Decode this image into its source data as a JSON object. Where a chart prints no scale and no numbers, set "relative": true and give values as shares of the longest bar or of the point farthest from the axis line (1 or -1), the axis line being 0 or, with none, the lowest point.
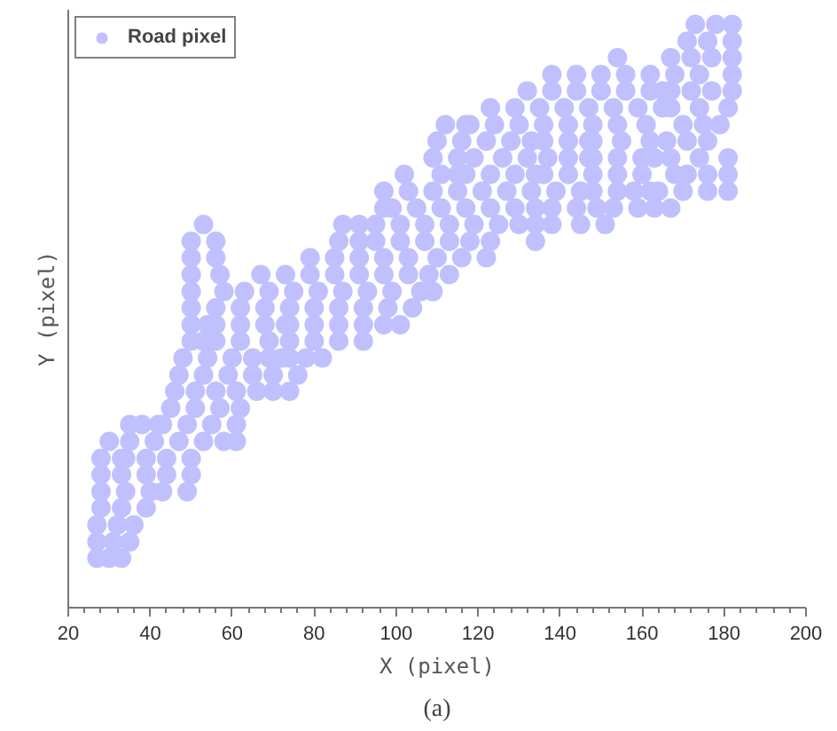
{
  "chart_data": {
    "type": "scatter",
    "relative": true,
    "xlabel": "X (pixel)",
    "ylabel": "Y (pixel)",
    "annotations": [
      "(a)"
    ],
    "xlim": [
      20,
      200
    ],
    "xticks": [
      20,
      40,
      60,
      80,
      100,
      120,
      140,
      160,
      180,
      200
    ],
    "legend": "top left",
    "marker": "circle",
    "series": [
      {
        "name": "Road pixel",
        "color": "#c0c0ff",
        "x": [
          173,
          178,
          182,
          171,
          176,
          182,
          154,
          167,
          172,
          177,
          182,
          138,
          144,
          150,
          156,
          162,
          168,
          174,
          182,
          132,
          138,
          144,
          150,
          156,
          162,
          165,
          167,
          172,
          177,
          182,
          123,
          129,
          135,
          141,
          147,
          153,
          159,
          165,
          167,
          174,
          181,
          112,
          117,
          118,
          124,
          130,
          136,
          142,
          148,
          154,
          161,
          170,
          175,
          179,
          110,
          116,
          122,
          128,
          133,
          136,
          142,
          147,
          148,
          155,
          162,
          166,
          171,
          176,
          109,
          115,
          119,
          126,
          132,
          137,
          142,
          147,
          148,
          154,
          160,
          163,
          167,
          174,
          181,
          102,
          111,
          115,
          117,
          123,
          129,
          134,
          136,
          142,
          148,
          154,
          160,
          168,
          171,
          176,
          181,
          97,
          103,
          109,
          115,
          121,
          127,
          133,
          139,
          145,
          148,
          154,
          158,
          162,
          164,
          170,
          176,
          181,
          97,
          99,
          105,
          111,
          117,
          123,
          129,
          134,
          138,
          144,
          149,
          153,
          159,
          163,
          167,
          53,
          87,
          91,
          95,
          101,
          107,
          113,
          119,
          125,
          130,
          134,
          138,
          145,
          151,
          50,
          56,
          86,
          91,
          95,
          101,
          107,
          113,
          118,
          123,
          134,
          50,
          56,
          79,
          85,
          91,
          97,
          103,
          110,
          116,
          122,
          50,
          57,
          67,
          73,
          79,
          85,
          91,
          97,
          103,
          108,
          113,
          50,
          58,
          63,
          69,
          75,
          81,
          87,
          93,
          99,
          106,
          109,
          50,
          56,
          62,
          68,
          74,
          80,
          86,
          92,
          98,
          104,
          50,
          54,
          56,
          62,
          68,
          73,
          74,
          80,
          86,
          92,
          97,
          101,
          50,
          53,
          56,
          62,
          69,
          74,
          80,
          86,
          92,
          48,
          54,
          60,
          65,
          69,
          72,
          74,
          78,
          82,
          47,
          53,
          59,
          65,
          70,
          76,
          46,
          51,
          56,
          61,
          66,
          70,
          74,
          45,
          51,
          57,
          62,
          35,
          38,
          42,
          43,
          49,
          55,
          61,
          30,
          35,
          41,
          47,
          53,
          58,
          61,
          28,
          33,
          34,
          39,
          44,
          50,
          28,
          33,
          39,
          44,
          50,
          28,
          34,
          40,
          43,
          49,
          28,
          33,
          39,
          27,
          32,
          36,
          27,
          31,
          35,
          27,
          30,
          33
        ],
        "values": [
          1.0,
          1.0,
          1.0,
          0.971,
          0.971,
          0.971,
          0.943,
          0.943,
          0.943,
          0.943,
          0.943,
          0.914,
          0.914,
          0.914,
          0.914,
          0.914,
          0.914,
          0.914,
          0.914,
          0.886,
          0.886,
          0.886,
          0.886,
          0.886,
          0.886,
          0.886,
          0.886,
          0.886,
          0.886,
          0.886,
          0.857,
          0.857,
          0.857,
          0.857,
          0.857,
          0.857,
          0.857,
          0.857,
          0.857,
          0.857,
          0.857,
          0.828,
          0.828,
          0.828,
          0.828,
          0.828,
          0.828,
          0.828,
          0.828,
          0.828,
          0.828,
          0.828,
          0.828,
          0.828,
          0.8,
          0.8,
          0.8,
          0.8,
          0.8,
          0.8,
          0.8,
          0.8,
          0.8,
          0.8,
          0.8,
          0.8,
          0.8,
          0.8,
          0.771,
          0.771,
          0.771,
          0.771,
          0.771,
          0.771,
          0.771,
          0.771,
          0.771,
          0.771,
          0.771,
          0.771,
          0.771,
          0.771,
          0.771,
          0.743,
          0.743,
          0.743,
          0.743,
          0.743,
          0.743,
          0.743,
          0.743,
          0.743,
          0.743,
          0.743,
          0.743,
          0.743,
          0.743,
          0.743,
          0.743,
          0.714,
          0.714,
          0.714,
          0.714,
          0.714,
          0.714,
          0.714,
          0.714,
          0.714,
          0.714,
          0.714,
          0.714,
          0.714,
          0.714,
          0.714,
          0.714,
          0.714,
          0.685,
          0.685,
          0.685,
          0.685,
          0.685,
          0.685,
          0.685,
          0.685,
          0.685,
          0.685,
          0.685,
          0.685,
          0.685,
          0.685,
          0.685,
          0.657,
          0.657,
          0.657,
          0.657,
          0.657,
          0.657,
          0.657,
          0.657,
          0.657,
          0.657,
          0.657,
          0.657,
          0.657,
          0.657,
          0.628,
          0.628,
          0.628,
          0.628,
          0.628,
          0.628,
          0.628,
          0.628,
          0.628,
          0.628,
          0.628,
          0.6,
          0.6,
          0.6,
          0.6,
          0.6,
          0.6,
          0.6,
          0.6,
          0.6,
          0.6,
          0.571,
          0.571,
          0.571,
          0.571,
          0.571,
          0.571,
          0.571,
          0.571,
          0.571,
          0.571,
          0.571,
          0.542,
          0.542,
          0.542,
          0.542,
          0.542,
          0.542,
          0.542,
          0.542,
          0.542,
          0.542,
          0.542,
          0.514,
          0.514,
          0.514,
          0.514,
          0.514,
          0.514,
          0.514,
          0.514,
          0.514,
          0.514,
          0.485,
          0.485,
          0.485,
          0.485,
          0.485,
          0.485,
          0.485,
          0.485,
          0.485,
          0.485,
          0.485,
          0.485,
          0.457,
          0.457,
          0.457,
          0.457,
          0.457,
          0.457,
          0.457,
          0.457,
          0.457,
          0.428,
          0.428,
          0.428,
          0.428,
          0.428,
          0.428,
          0.428,
          0.428,
          0.428,
          0.399,
          0.399,
          0.399,
          0.399,
          0.399,
          0.399,
          0.371,
          0.371,
          0.371,
          0.371,
          0.371,
          0.371,
          0.371,
          0.342,
          0.342,
          0.342,
          0.342,
          0.314,
          0.314,
          0.314,
          0.314,
          0.314,
          0.314,
          0.314,
          0.285,
          0.285,
          0.285,
          0.285,
          0.285,
          0.285,
          0.285,
          0.256,
          0.256,
          0.256,
          0.256,
          0.256,
          0.256,
          0.228,
          0.228,
          0.228,
          0.228,
          0.228,
          0.199,
          0.199,
          0.199,
          0.199,
          0.199,
          0.171,
          0.171,
          0.171,
          0.142,
          0.142,
          0.142,
          0.113,
          0.113,
          0.113,
          0.085,
          0.085,
          0.085
        ]
      }
    ]
  }
}
